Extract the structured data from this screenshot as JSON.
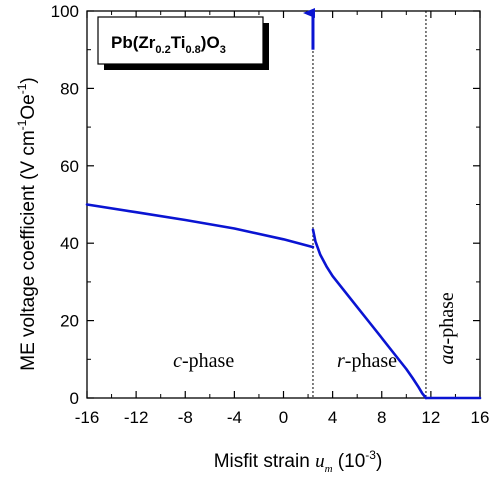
{
  "chart_data": {
    "type": "line",
    "xlabel_prefix": "Misfit strain ",
    "xlabel_var": "u",
    "xlabel_var_sub": "m",
    "xlabel_unit_pre": " (10",
    "xlabel_unit_exp": "-3",
    "xlabel_unit_post": ")",
    "ylabel": "ME voltage coefficient (V cm",
    "ylabel_exp1": "-1",
    "ylabel_mid": "Oe",
    "ylabel_exp2": "-1",
    "ylabel_post": ")",
    "xlim": [
      -16,
      16
    ],
    "ylim": [
      0,
      100
    ],
    "x_ticks": [
      "-16",
      "-12",
      "-8",
      "-4",
      "0",
      "4",
      "8",
      "12",
      "16"
    ],
    "y_ticks": [
      "0",
      "20",
      "40",
      "60",
      "80",
      "100"
    ],
    "grid": false,
    "legend_box": {
      "base": "Pb(Zr",
      "zr_sub": "0.2",
      "mid": "Ti",
      "ti_sub": "0.8",
      "post": ")O",
      "o_sub": "3"
    },
    "boundaries": [
      2.4,
      11.6
    ],
    "phase_labels": [
      {
        "italic": "c",
        "rest": "-phase",
        "x": -6.5,
        "y": 8
      },
      {
        "italic": "r",
        "rest": "-phase",
        "x": 6.8,
        "y": 8
      },
      {
        "italic": "aa",
        "rest": "-phase",
        "x": 13.8,
        "y": 18,
        "rotated": true
      }
    ],
    "divergence_arrow": {
      "x": 2.4,
      "y_from": 90,
      "y_to": 100
    },
    "color": "#0a14d2",
    "series": [
      {
        "phase": "c",
        "x": [
          -16,
          -12,
          -8,
          -4,
          0,
          2.4
        ],
        "values": [
          50.0,
          48.0,
          46.0,
          43.8,
          41.0,
          39.0
        ]
      },
      {
        "phase": "r",
        "x": [
          2.4,
          2.6,
          3.0,
          3.5,
          4,
          5,
          6,
          7,
          8,
          9,
          10,
          10.5,
          11,
          11.3,
          11.6
        ],
        "values": [
          43.5,
          40.5,
          37.0,
          34.0,
          31.5,
          27.5,
          23.5,
          19.5,
          15.5,
          11.5,
          7.5,
          5.2,
          2.8,
          1.2,
          0
        ]
      },
      {
        "phase": "aa",
        "x": [
          11.6,
          16
        ],
        "values": [
          0,
          0
        ]
      }
    ]
  }
}
